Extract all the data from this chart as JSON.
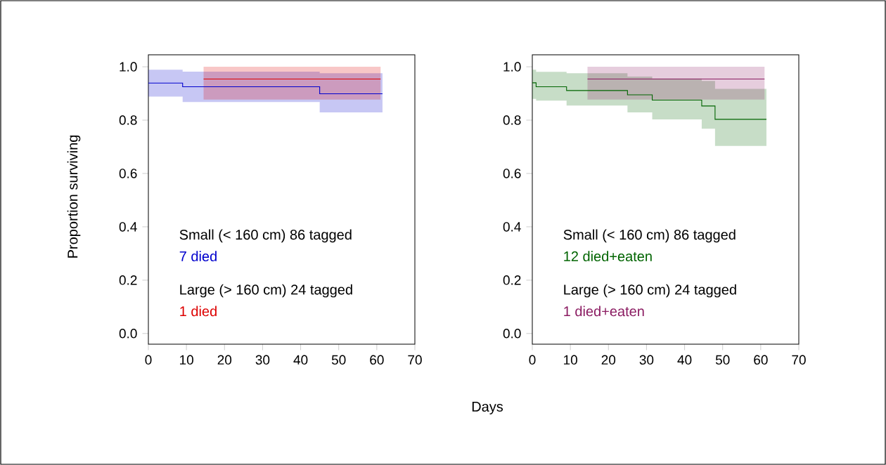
{
  "chart_data": [
    {
      "type": "step",
      "xlabel": "Days",
      "ylabel": "Proportion surviving",
      "xlim": [
        0,
        70
      ],
      "ylim": [
        -0.04,
        1.045
      ],
      "xticks": [
        0,
        10,
        20,
        30,
        40,
        50,
        60,
        70
      ],
      "yticks": [
        {
          "value": 0,
          "label": "0.0"
        },
        {
          "value": 0.2,
          "label": "0.2"
        },
        {
          "value": 0.4,
          "label": "0.4"
        },
        {
          "value": 0.6,
          "label": "0.6"
        },
        {
          "value": 0.8,
          "label": "0.8"
        },
        {
          "value": 1,
          "label": "1.0"
        }
      ],
      "annotations": [
        "Small (< 160 cm) 86 tagged",
        "Large (> 160 cm) 24 tagged"
      ],
      "series": [
        {
          "name": "7 died",
          "color": "#0000cd",
          "x": [
            0,
            9,
            45,
            61.5
          ],
          "values": [
            0.939,
            0.925,
            0.899,
            0.899
          ],
          "upper": [
            0.989,
            0.982,
            0.976,
            0.976
          ],
          "lower": [
            0.888,
            0.868,
            0.829,
            0.829
          ]
        },
        {
          "name": "1 died",
          "color": "#dd0000",
          "x": [
            14.5,
            61
          ],
          "values": [
            0.954,
            0.954
          ],
          "upper": [
            1.0,
            1.0
          ],
          "lower": [
            0.877,
            0.877
          ]
        }
      ]
    },
    {
      "type": "step",
      "xlim": [
        0,
        70
      ],
      "ylim": [
        -0.04,
        1.045
      ],
      "xticks": [
        0,
        10,
        20,
        30,
        40,
        50,
        60,
        70
      ],
      "yticks": [
        {
          "value": 0,
          "label": "0.0"
        },
        {
          "value": 0.2,
          "label": "0.2"
        },
        {
          "value": 0.4,
          "label": "0.4"
        },
        {
          "value": 0.6,
          "label": "0.6"
        },
        {
          "value": 0.8,
          "label": "0.8"
        },
        {
          "value": 1,
          "label": "1.0"
        }
      ],
      "annotations": [
        "Small (< 160 cm) 86 tagged",
        "Large (> 160 cm) 24 tagged"
      ],
      "series": [
        {
          "name": "12 died+eaten",
          "color": "#006400",
          "x": [
            0,
            1,
            9,
            25,
            31.5,
            44.5,
            48,
            61.5
          ],
          "values": [
            0.94,
            0.925,
            0.911,
            0.895,
            0.875,
            0.853,
            0.803,
            0.803
          ],
          "upper": [
            0.989,
            0.981,
            0.976,
            0.963,
            0.956,
            0.947,
            0.917,
            0.917
          ],
          "lower": [
            0.88,
            0.873,
            0.855,
            0.829,
            0.803,
            0.768,
            0.703,
            0.703
          ]
        },
        {
          "name": "1 died+eaten",
          "color": "#8b1c62",
          "x": [
            14.5,
            61
          ],
          "values": [
            0.954,
            0.954
          ],
          "upper": [
            1.0,
            1.0
          ],
          "lower": [
            0.877,
            0.877
          ]
        }
      ]
    }
  ]
}
